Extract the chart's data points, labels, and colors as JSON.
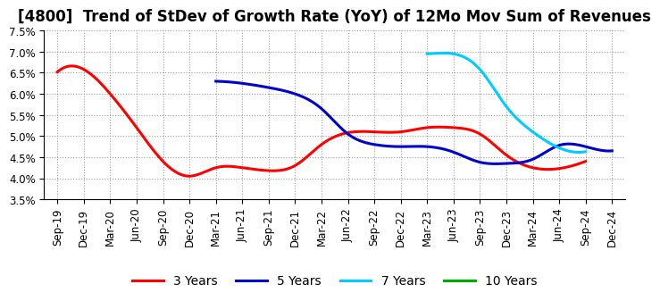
{
  "title": "[4800]  Trend of StDev of Growth Rate (YoY) of 12Mo Mov Sum of Revenues",
  "ylim": [
    0.035,
    0.075
  ],
  "yticks": [
    0.035,
    0.04,
    0.045,
    0.05,
    0.055,
    0.06,
    0.065,
    0.07,
    0.075
  ],
  "background_color": "#ffffff",
  "grid_color": "#aaaaaa",
  "title_fontsize": 12,
  "tick_fontsize": 8.5,
  "legend_fontsize": 10,
  "line_width": 2.2,
  "xtick_labels": [
    "Sep-19",
    "Dec-19",
    "Mar-20",
    "Jun-20",
    "Sep-20",
    "Dec-20",
    "Mar-21",
    "Jun-21",
    "Sep-21",
    "Dec-21",
    "Mar-22",
    "Jun-22",
    "Sep-22",
    "Dec-22",
    "Mar-23",
    "Jun-23",
    "Sep-23",
    "Dec-23",
    "Mar-24",
    "Jun-24",
    "Sep-24",
    "Dec-24"
  ],
  "series": {
    "3 Years": {
      "color": "#ff0000",
      "x": [
        "Sep-19",
        "Dec-19",
        "Mar-20",
        "Jun-20",
        "Sep-20",
        "Dec-20",
        "Mar-21",
        "Jun-21",
        "Sep-21",
        "Dec-21",
        "Mar-22",
        "Jun-22",
        "Sep-22",
        "Dec-22",
        "Mar-23",
        "Jun-23",
        "Sep-23",
        "Dec-23",
        "Mar-24",
        "Jun-24",
        "Sep-24"
      ],
      "y": [
        0.0652,
        0.0658,
        0.06,
        0.052,
        0.044,
        0.0405,
        0.0425,
        0.0425,
        0.0418,
        0.043,
        0.048,
        0.0508,
        0.051,
        0.051,
        0.052,
        0.052,
        0.0505,
        0.0455,
        0.0425,
        0.0423,
        0.044
      ]
    },
    "5 Years": {
      "color": "#0000cc",
      "x": [
        "Mar-21",
        "Jun-21",
        "Sep-21",
        "Dec-21",
        "Mar-22",
        "Jun-22",
        "Sep-22",
        "Dec-22",
        "Mar-23",
        "Jun-23",
        "Sep-23",
        "Dec-23",
        "Mar-24",
        "Jun-24",
        "Sep-24",
        "Dec-24"
      ],
      "y": [
        0.063,
        0.0625,
        0.0615,
        0.06,
        0.0565,
        0.0505,
        0.048,
        0.0475,
        0.0475,
        0.0462,
        0.0438,
        0.0435,
        0.0445,
        0.0478,
        0.0475,
        0.0465
      ]
    },
    "7 Years": {
      "color": "#00ccff",
      "x": [
        "Mar-23",
        "Jun-23",
        "Sep-23",
        "Dec-23",
        "Mar-24",
        "Jun-24",
        "Sep-24"
      ],
      "y": [
        0.0695,
        0.0695,
        0.0658,
        0.057,
        0.051,
        0.0472,
        0.0463
      ]
    },
    "10 Years": {
      "color": "#00aa00",
      "x": [],
      "y": []
    }
  }
}
